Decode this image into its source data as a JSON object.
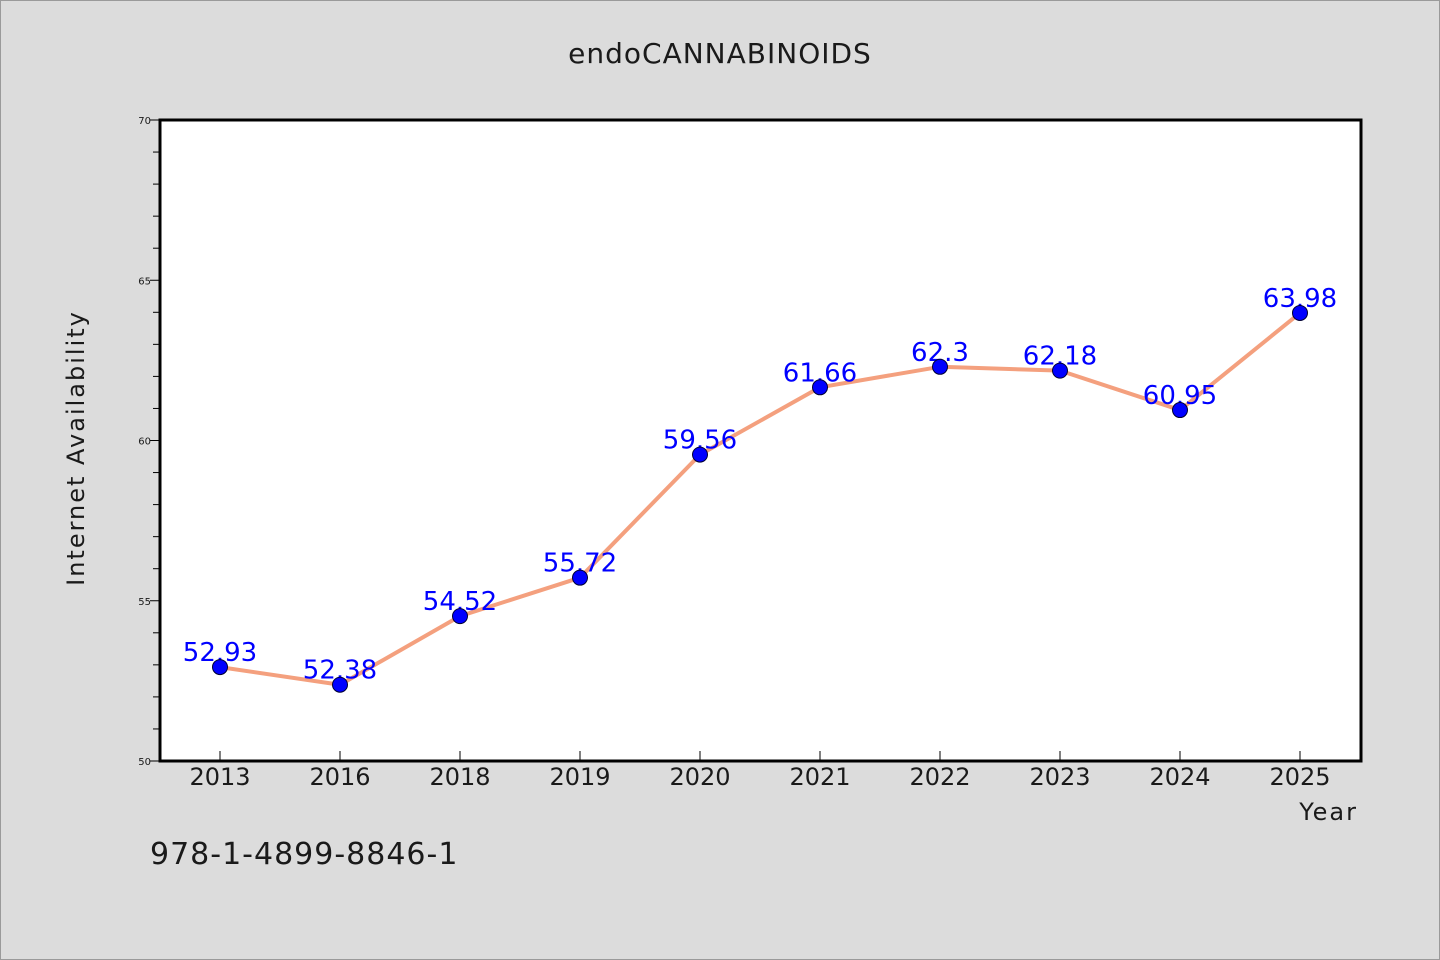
{
  "chart_data": {
    "type": "line",
    "title": "endoCANNABINOIDS",
    "xlabel": "Year",
    "ylabel": "Internet Availability",
    "categories": [
      "2013",
      "2016",
      "2018",
      "2019",
      "2020",
      "2021",
      "2022",
      "2023",
      "2024",
      "2025"
    ],
    "series": [
      {
        "values": [
          52.93,
          52.38,
          54.52,
          55.72,
          59.56,
          61.66,
          62.3,
          62.18,
          60.95,
          63.98
        ],
        "labels": [
          "52.93",
          "52.38",
          "54.52",
          "55.72",
          "59.56",
          "61.66",
          "62.3",
          "62.18",
          "60.95",
          "63.98"
        ]
      }
    ],
    "ylim": [
      50,
      70
    ],
    "yticks": [
      50,
      55,
      60,
      65,
      70
    ],
    "ytick_labels": [
      "50",
      "55",
      "60",
      "65",
      "70"
    ],
    "grid": false,
    "colors": {
      "line": "#f4a07e",
      "marker": "#0000ff",
      "label": "#0000ff"
    }
  },
  "footer": {
    "isbn": "978-1-4899-8846-1"
  }
}
